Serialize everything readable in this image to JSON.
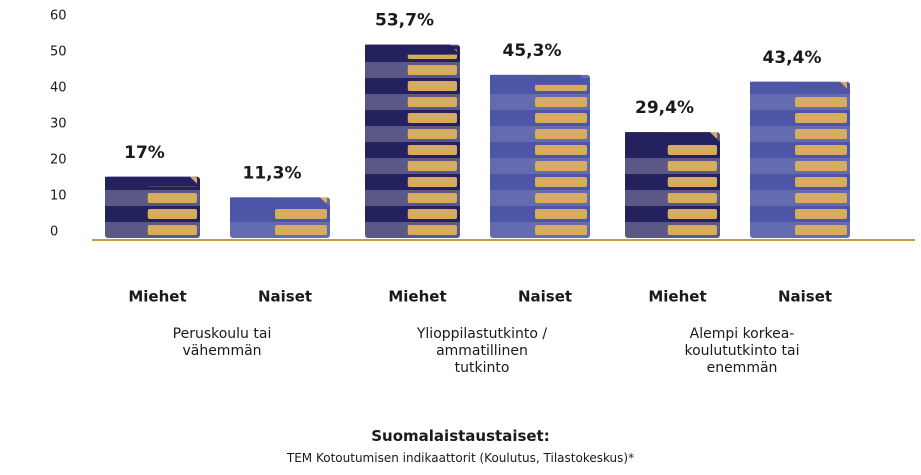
{
  "chart_data": {
    "type": "bar",
    "categories": [
      "Peruskoulu tai vähemmän",
      "Ylioppilastutkinto / ammatillinen tutkinto",
      "Alempi korkea-koulututkinto tai enemmän"
    ],
    "series": [
      {
        "name": "Miehet",
        "color": "#23225e",
        "values": [
          17,
          53.7,
          29.4
        ],
        "value_labels": [
          "17%",
          "53,7%",
          "29,4%"
        ]
      },
      {
        "name": "Naiset",
        "color": "#4d56a6",
        "values": [
          11.3,
          45.3,
          43.4
        ],
        "value_labels": [
          "11,3%",
          "45,3%",
          "43,4%"
        ]
      }
    ],
    "ylim": [
      0,
      60
    ],
    "yticks": [
      0,
      10,
      20,
      30,
      40,
      50,
      60
    ],
    "page_color": "#d8ac5e",
    "axis_color": "#c99a45",
    "footer_title": "Suomalaistaustaiset:",
    "source": "TEM Kotoutumisen indikaattorit (Koulutus, Tilastokeskus)*"
  }
}
